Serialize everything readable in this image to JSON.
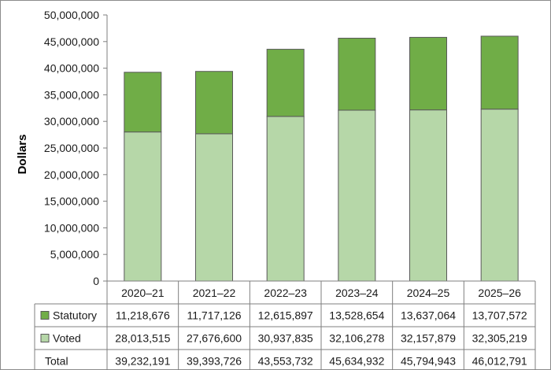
{
  "chart_data": {
    "type": "bar",
    "stacked": true,
    "ylabel": "Dollars",
    "xlabel": "",
    "title": "",
    "ylim": [
      0,
      50000000
    ],
    "yticks": [
      0,
      5000000,
      10000000,
      15000000,
      20000000,
      25000000,
      30000000,
      35000000,
      40000000,
      45000000,
      50000000
    ],
    "ytick_labels": [
      "0",
      "5,000,000",
      "10,000,000",
      "15,000,000",
      "20,000,000",
      "25,000,000",
      "30,000,000",
      "35,000,000",
      "40,000,000",
      "45,000,000",
      "50,000,000"
    ],
    "grid": false,
    "legend_placement": "table-below",
    "categories": [
      "2020–21",
      "2021–22",
      "2022–23",
      "2023–24",
      "2024–25",
      "2025–26"
    ],
    "series": [
      {
        "name": "Voted",
        "color": "#b6d7a8",
        "values": [
          28013515,
          27676600,
          30937835,
          32106278,
          32157879,
          32305219
        ],
        "labels": [
          "28,013,515",
          "27,676,600",
          "30,937,835",
          "32,106,278",
          "32,157,879",
          "32,305,219"
        ]
      },
      {
        "name": "Statutory",
        "color": "#70ad47",
        "values": [
          11218676,
          11717126,
          12615897,
          13528654,
          13637064,
          13707572
        ],
        "labels": [
          "11,218,676",
          "11,717,126",
          "12,615,897",
          "13,528,654",
          "13,637,064",
          "13,707,572"
        ]
      }
    ],
    "total": {
      "name": "Total",
      "values": [
        39232191,
        39393726,
        43553732,
        45634932,
        45794943,
        46012791
      ],
      "labels": [
        "39,232,191",
        "39,393,726",
        "43,553,732",
        "45,634,932",
        "45,794,943",
        "46,012,791"
      ]
    }
  }
}
